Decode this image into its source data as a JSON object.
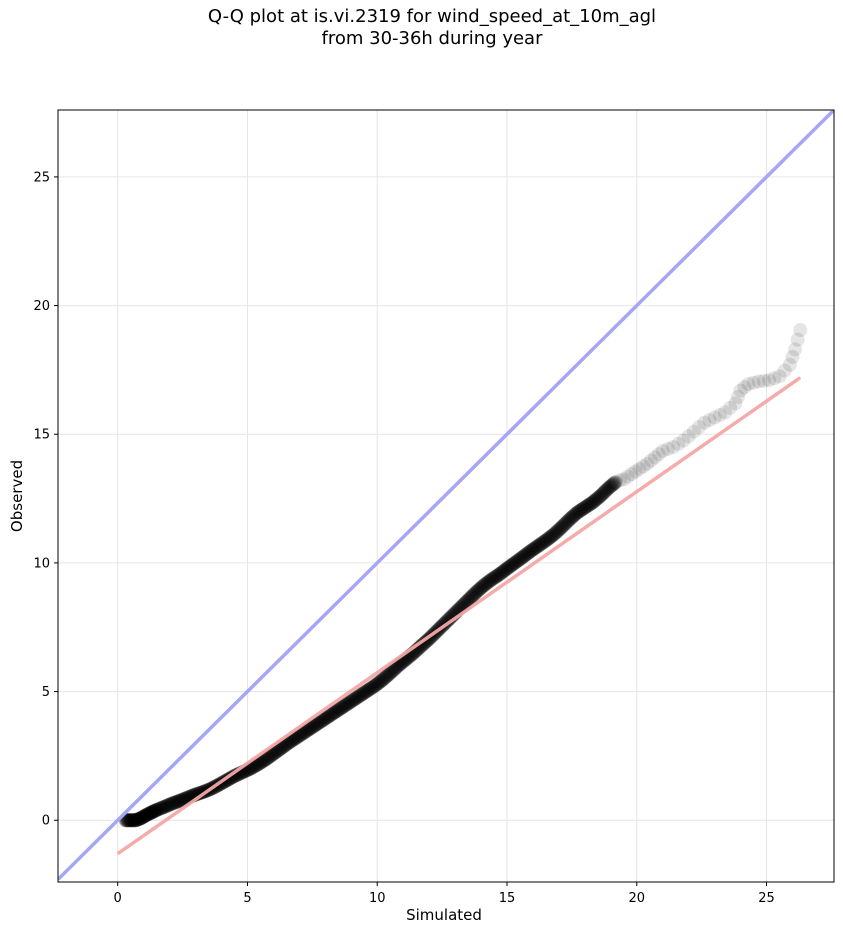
{
  "chart_data": {
    "type": "scatter",
    "title": "Q-Q plot at is.vi.2319 for wind_speed_at_10m_agl\nfrom 30-36h during year",
    "xlabel": "Simulated",
    "ylabel": "Observed",
    "xlim": [
      -2.3,
      27.6
    ],
    "ylim": [
      -2.4,
      27.6
    ],
    "xticks": [
      0,
      5,
      10,
      15,
      20,
      25
    ],
    "yticks": [
      0,
      5,
      10,
      15,
      20,
      25
    ],
    "grid": true,
    "legend": "none",
    "series": [
      {
        "kind": "quantile_points",
        "color": "#000000",
        "points": [
          [
            0.3,
            0.0
          ],
          [
            0.5,
            0.0
          ],
          [
            0.7,
            0.0
          ],
          [
            0.9,
            0.08
          ],
          [
            1.1,
            0.2
          ],
          [
            1.3,
            0.3
          ],
          [
            1.5,
            0.4
          ],
          [
            1.8,
            0.52
          ],
          [
            2.1,
            0.65
          ],
          [
            2.4,
            0.76
          ],
          [
            2.7,
            0.88
          ],
          [
            3.0,
            1.0
          ],
          [
            3.3,
            1.1
          ],
          [
            3.6,
            1.22
          ],
          [
            3.9,
            1.38
          ],
          [
            4.2,
            1.55
          ],
          [
            4.5,
            1.72
          ],
          [
            4.8,
            1.86
          ],
          [
            5.1,
            2.0
          ],
          [
            5.4,
            2.17
          ],
          [
            5.7,
            2.36
          ],
          [
            6.0,
            2.58
          ],
          [
            6.3,
            2.8
          ],
          [
            6.6,
            3.02
          ],
          [
            6.9,
            3.22
          ],
          [
            7.2,
            3.42
          ],
          [
            7.5,
            3.62
          ],
          [
            7.8,
            3.82
          ],
          [
            8.1,
            4.02
          ],
          [
            8.4,
            4.22
          ],
          [
            8.7,
            4.42
          ],
          [
            9.0,
            4.62
          ],
          [
            9.3,
            4.82
          ],
          [
            9.6,
            5.02
          ],
          [
            9.9,
            5.22
          ],
          [
            10.2,
            5.45
          ],
          [
            10.5,
            5.72
          ],
          [
            10.8,
            6.0
          ],
          [
            11.1,
            6.25
          ],
          [
            11.4,
            6.5
          ],
          [
            11.7,
            6.78
          ],
          [
            12.0,
            7.05
          ],
          [
            12.3,
            7.35
          ],
          [
            12.6,
            7.65
          ],
          [
            12.9,
            7.95
          ],
          [
            13.2,
            8.25
          ],
          [
            13.5,
            8.55
          ],
          [
            13.8,
            8.85
          ],
          [
            14.1,
            9.12
          ],
          [
            14.4,
            9.35
          ],
          [
            14.7,
            9.55
          ],
          [
            15.0,
            9.78
          ],
          [
            15.3,
            10.0
          ],
          [
            15.6,
            10.22
          ],
          [
            15.9,
            10.45
          ],
          [
            16.2,
            10.66
          ],
          [
            16.5,
            10.87
          ],
          [
            16.8,
            11.1
          ],
          [
            17.1,
            11.38
          ],
          [
            17.4,
            11.68
          ],
          [
            17.7,
            11.95
          ],
          [
            18.0,
            12.15
          ],
          [
            18.3,
            12.35
          ],
          [
            18.6,
            12.6
          ],
          [
            18.9,
            12.9
          ],
          [
            19.2,
            13.15
          ],
          [
            19.5,
            13.25
          ],
          [
            19.8,
            13.45
          ],
          [
            20.1,
            13.65
          ],
          [
            20.4,
            13.85
          ],
          [
            20.7,
            14.1
          ],
          [
            21.0,
            14.35
          ],
          [
            21.4,
            14.5
          ],
          [
            21.8,
            14.75
          ],
          [
            22.2,
            15.1
          ],
          [
            22.6,
            15.45
          ],
          [
            23.0,
            15.65
          ],
          [
            23.4,
            15.85
          ],
          [
            23.8,
            16.2
          ],
          [
            24.0,
            16.7
          ],
          [
            24.3,
            16.95
          ],
          [
            24.7,
            17.05
          ],
          [
            25.1,
            17.1
          ],
          [
            25.5,
            17.25
          ],
          [
            25.9,
            17.7
          ],
          [
            26.1,
            18.3
          ],
          [
            26.3,
            19.05
          ]
        ]
      },
      {
        "kind": "identity_line",
        "color": "#a6a6f6",
        "points": [
          [
            -2.3,
            -2.3
          ],
          [
            27.6,
            27.6
          ]
        ]
      },
      {
        "kind": "fit_line",
        "color": "#f6a6a6",
        "points": [
          [
            0.0,
            -1.3
          ],
          [
            26.3,
            17.2
          ]
        ]
      }
    ]
  }
}
